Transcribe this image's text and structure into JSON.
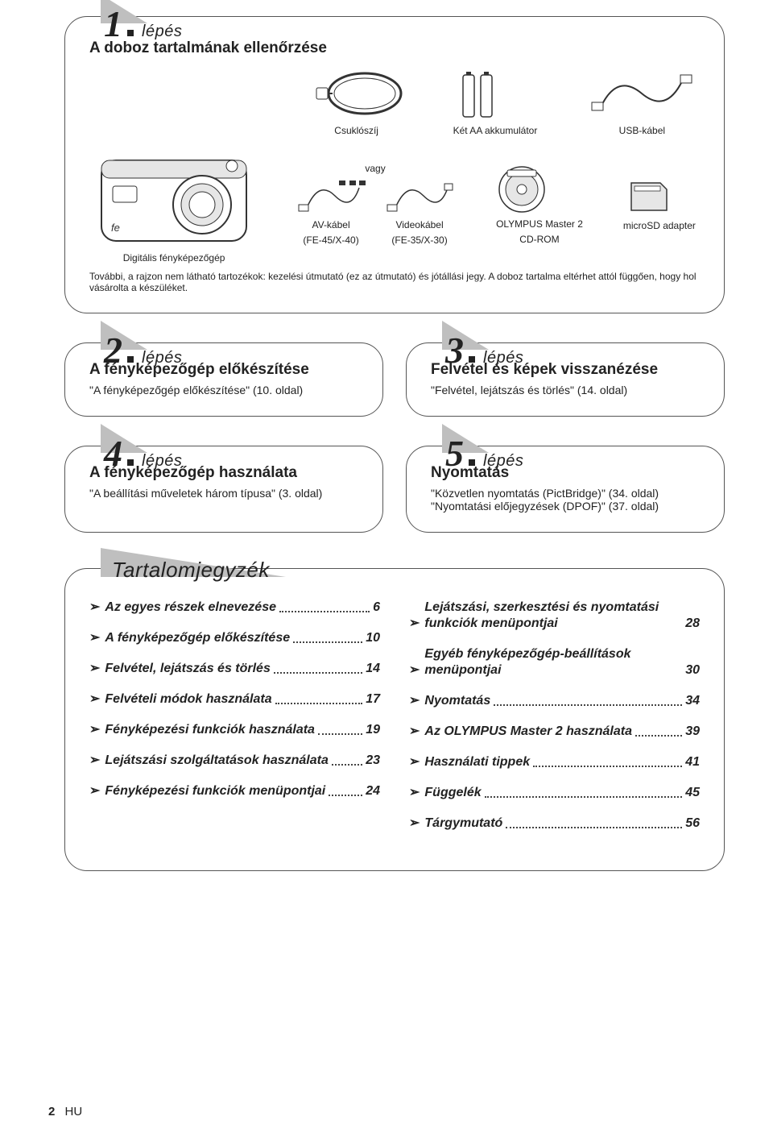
{
  "colors": {
    "text": "#222222",
    "border": "#555555",
    "tab_fill": "#bfbfbf",
    "dot_leader": "#444444",
    "illus_stroke": "#333333",
    "illus_fill": "#ffffff",
    "illus_light": "#e6e6e6"
  },
  "step_label": "lépés",
  "step1": {
    "num": "1",
    "title": "A doboz tartalmának ellenőrzése",
    "items_row1": {
      "strap": "Csuklószíj",
      "batteries": "Két AA akkumulátor",
      "usb": "USB-kábel"
    },
    "items_row2": {
      "camera": "Digitális fényképezőgép",
      "vagy": "vagy",
      "av_label": "AV-kábel",
      "av_model": "(FE-45/X-40)",
      "video_label": "Videokábel",
      "video_model": "(FE-35/X-30)",
      "cd_label": "OLYMPUS Master 2",
      "cd_sub": "CD-ROM",
      "sd": "microSD adapter"
    },
    "note": "További, a rajzon nem látható tartozékok: kezelési útmutató (ez az útmutató) és jótállási jegy. A doboz tartalma eltérhet attól függően, hogy hol vásárolta a készüléket."
  },
  "step2": {
    "num": "2",
    "title": "A fényképezőgép előkészítése",
    "sub": "\"A fényképezőgép előkészítése\" (10. oldal)"
  },
  "step3": {
    "num": "3",
    "title": "Felvétel és képek visszanézése",
    "sub": "\"Felvétel, lejátszás és törlés\" (14. oldal)"
  },
  "step4": {
    "num": "4",
    "title": "A fényképezőgép használata",
    "sub": "\"A beállítási műveletek három típusa\" (3. oldal)"
  },
  "step5": {
    "num": "5",
    "title": "Nyomtatás",
    "sub1": "\"Közvetlen nyomtatás (PictBridge)\" (34. oldal)",
    "sub2": "\"Nyomtatási előjegyzések (DPOF)\" (37. oldal)"
  },
  "toc": {
    "title": "Tartalomjegyzék",
    "left": [
      {
        "label": "Az egyes részek elnevezése",
        "pg": "6"
      },
      {
        "label": "A fényképezőgép előkészítése",
        "pg": "10"
      },
      {
        "label": "Felvétel, lejátszás és törlés",
        "pg": "14"
      },
      {
        "label": "Felvételi módok használata",
        "pg": "17"
      },
      {
        "label": "Fényképezési funkciók használata",
        "pg": "19"
      },
      {
        "label": "Lejátszási szolgáltatások használata",
        "pg": "23"
      },
      {
        "label": "Fényképezési funkciók menüpontjai",
        "pg": "24"
      }
    ],
    "right": [
      {
        "label": "Lejátszási, szerkesztési és nyomtatási funkciók menüpontjai",
        "pg": "28"
      },
      {
        "label": "Egyéb fényképezőgép-beállítások menüpontjai",
        "pg": "30"
      },
      {
        "label": "Nyomtatás",
        "pg": "34"
      },
      {
        "label": "Az OLYMPUS Master 2 használata",
        "pg": "39"
      },
      {
        "label": "Használati tippek",
        "pg": "41"
      },
      {
        "label": "Függelék",
        "pg": "45"
      },
      {
        "label": "Tárgymutató",
        "pg": "56"
      }
    ]
  },
  "footer": {
    "page": "2",
    "lang": "HU"
  }
}
